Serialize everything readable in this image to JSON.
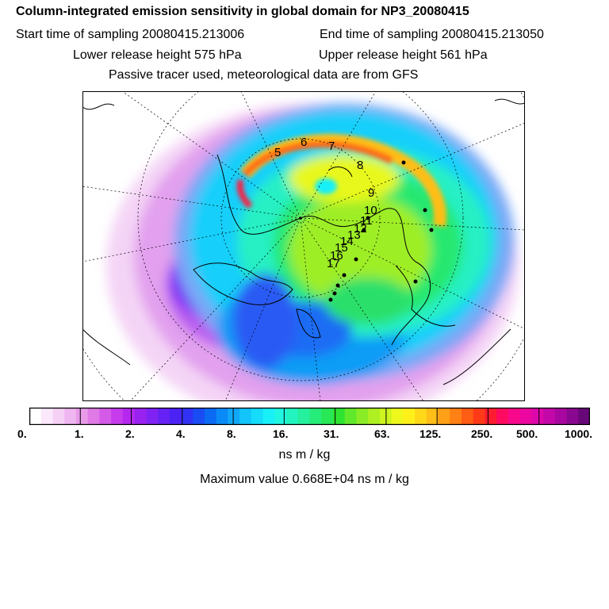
{
  "title": "Column-integrated emission sensitivity in global domain for NP3_20080415",
  "header": {
    "start_label": "Start time of sampling 20080415.213006",
    "end_label": "End time of sampling 20080415.213050",
    "lower_label": "Lower release height  575 hPa",
    "upper_label": "Upper release height  561 hPa",
    "tracer_note": "Passive tracer used, meteorological data are from GFS"
  },
  "map": {
    "projection": "north-polar-stereographic",
    "trajectory_labels": [
      "5",
      "6",
      "7",
      "8",
      "9",
      "10",
      "11",
      "12",
      "13",
      "14",
      "15",
      "16",
      "17"
    ]
  },
  "colorbar": {
    "tick_labels": [
      "0.",
      "1.",
      "2.",
      "4.",
      "8.",
      "16.",
      "31.",
      "63.",
      "125.",
      "250.",
      "500.",
      "1000."
    ],
    "colors": [
      "#ffffff",
      "#fbe8fb",
      "#f6d1f6",
      "#f0b6f0",
      "#e89ae8",
      "#e07ae6",
      "#d45ae8",
      "#c63cec",
      "#b428f0",
      "#9a22f0",
      "#8022f4",
      "#6622f4",
      "#4c22f4",
      "#3232f4",
      "#1a4cf4",
      "#0a6af4",
      "#0a8af6",
      "#10a8f8",
      "#12c4fa",
      "#14dcfa",
      "#18f0f8",
      "#20f6e0",
      "#22f4c0",
      "#24f09e",
      "#26ec7a",
      "#28e856",
      "#2ee432",
      "#60e82a",
      "#8aec26",
      "#aef022",
      "#cef420",
      "#eef81c",
      "#fff01a",
      "#ffd81a",
      "#ffbe18",
      "#ffa016",
      "#ff8014",
      "#ff5c14",
      "#ff3a18",
      "#ff1c30",
      "#ff0a60",
      "#f8088a",
      "#ec08a0",
      "#dc08aa",
      "#c408a8",
      "#a808a0",
      "#8a0890",
      "#680878"
    ],
    "units": "ns m / kg"
  },
  "max_value": "Maximum value  0.668E+04 ns m / kg"
}
